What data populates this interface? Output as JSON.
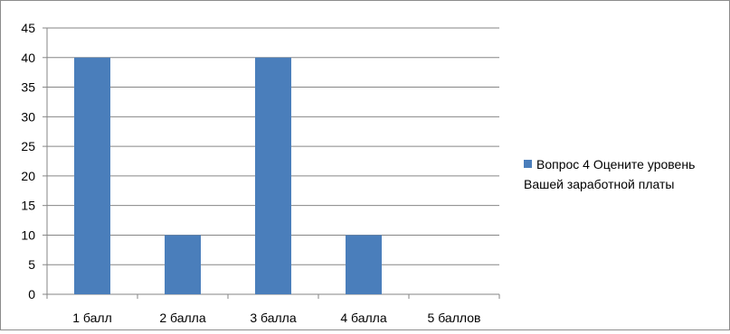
{
  "chart_data": {
    "type": "bar",
    "categories": [
      "1 балл",
      "2 балла",
      "3 балла",
      "4 балла",
      "5 баллов"
    ],
    "series": [
      {
        "name": "Вопрос 4 Оцените уровень Вашей заработной платы",
        "values": [
          40,
          10,
          40,
          10,
          0
        ],
        "color": "#4a7ebb"
      }
    ],
    "ylim": [
      0,
      45
    ],
    "yticks": [
      "0",
      "5",
      "10",
      "15",
      "20",
      "25",
      "30",
      "35",
      "40",
      "45"
    ],
    "grid": true,
    "legend_position": "right"
  }
}
